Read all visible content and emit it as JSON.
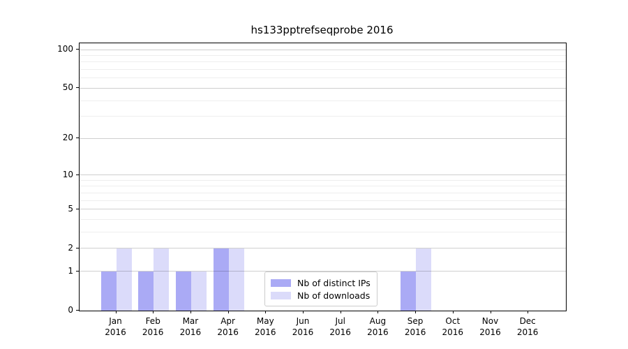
{
  "title": "hs133pptrefseqprobe 2016",
  "chart_data": {
    "type": "bar",
    "title": "hs133pptrefseqprobe 2016",
    "categories": [
      "Jan",
      "Feb",
      "Mar",
      "Apr",
      "May",
      "Jun",
      "Jul",
      "Aug",
      "Sep",
      "Oct",
      "Nov",
      "Dec"
    ],
    "category_year": "2016",
    "series": [
      {
        "name": "Nb of distinct IPs",
        "color": "#aaaaf5",
        "values": [
          1,
          1,
          1,
          2,
          0,
          0,
          0,
          0,
          1,
          0,
          0,
          0
        ]
      },
      {
        "name": "Nb of downloads",
        "color": "#dbdbfa",
        "values": [
          2,
          2,
          1,
          2,
          0,
          0,
          0,
          0,
          2,
          0,
          0,
          0
        ]
      }
    ],
    "y_axis": {
      "scale": "log1p",
      "major_ticks": [
        0,
        1,
        2,
        5,
        10,
        20,
        50,
        100
      ],
      "minor_ticks": [
        3,
        4,
        6,
        7,
        8,
        9,
        30,
        40,
        60,
        70,
        80,
        90
      ],
      "range_max": 112
    },
    "grid": "on",
    "legend_position": "lower center"
  }
}
